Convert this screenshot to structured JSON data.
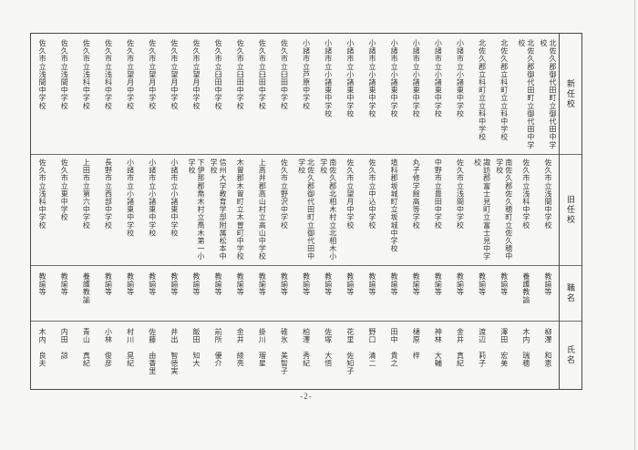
{
  "document": {
    "page_number": "-2-",
    "table": {
      "headers": {
        "new_school": "新任校",
        "old_school": "旧任校",
        "title": "職名",
        "name": "氏名"
      },
      "entries_order": "right-to-left",
      "entries": [
        {
          "new_school": "北佐久郡御代田町立御代田中学校",
          "old_school": "佐久市立浅間中学校",
          "title": "教諭等",
          "name": "柳澤　和恵"
        },
        {
          "new_school": "北佐久郡御代田町立御代田中学校",
          "old_school": "佐久市立浅科中学校",
          "title": "養護教諭",
          "name": "木内　瑞穂"
        },
        {
          "new_school": "北佐久郡立科町立立科中学校",
          "old_school": "南佐久郡佐久穂町立佐久穂中学校",
          "title": "教諭等",
          "name": "澤田　宏美"
        },
        {
          "new_school": "北佐久郡立科町立立科中学校",
          "old_school": "諏訪郡富士見町立富士見中学校",
          "title": "教諭等",
          "name": "渡辺　莉子"
        },
        {
          "new_school": "小諸市立小諸東中学校",
          "old_school": "佐久市立浅間中学校",
          "title": "教諭等",
          "name": "金井　真紀"
        },
        {
          "new_school": "小諸市立小諸東中学校",
          "old_school": "中野市立豊田中学校",
          "title": "教諭等",
          "name": "神林　大輔"
        },
        {
          "new_school": "小諸市立小諸東中学校",
          "old_school": "丸子修学館高等学校",
          "title": "教諭等",
          "name": "樋原　梓"
        },
        {
          "new_school": "小諸市立小諸東中学校",
          "old_school": "埴科郡坂城町立坂城中学校",
          "title": "教諭等",
          "name": "田中　貴之"
        },
        {
          "new_school": "小諸市立小諸東中学校",
          "old_school": "佐久市立中込中学校",
          "title": "教諭等",
          "name": "野口　清二"
        },
        {
          "new_school": "小諸市立小諸東中学校",
          "old_school": "佐久市立望月中学校",
          "title": "教諭等",
          "name": "花里　佐知子"
        },
        {
          "new_school": "小諸市立小諸東中学校",
          "old_school": "南佐久郡北相木村立北相木小学校",
          "title": "教諭等",
          "name": "佐塚　大悟"
        },
        {
          "new_school": "小諸市立芦原中学校",
          "old_school": "北佐久郡御代田町立御代田中学校",
          "title": "教諭等",
          "name": "柏澤　秀紀"
        },
        {
          "new_school": "佐久市立臼田中学校",
          "old_school": "佐久市立野沢中学校",
          "title": "教諭等",
          "name": "碓氷　美智子"
        },
        {
          "new_school": "佐久市立臼田中学校",
          "old_school": "上高井郡高山村立高山中学校",
          "title": "教諭等",
          "name": "掛川　瑠星"
        },
        {
          "new_school": "佐久市立臼田中学校",
          "old_school": "木曽郡木曽町立木曽町中学校",
          "title": "教諭等",
          "name": "金井　綾亮"
        },
        {
          "new_school": "佐久市立臼田中学校",
          "old_school": "信州大学教育学部附属松本中学校",
          "title": "教諭等",
          "name": "前所　優介"
        },
        {
          "new_school": "佐久市立望月中学校",
          "old_school": "下伊那郡喬木村立喬木第一小学校",
          "title": "教諭等",
          "name": "飯田　知大"
        },
        {
          "new_school": "佐久市立望月中学校",
          "old_school": "小諸市立小諸東中学校",
          "title": "教諭等",
          "name": "井出　智徳実"
        },
        {
          "new_school": "佐久市立望月中学校",
          "old_school": "小諸市立小諸東中学校",
          "title": "教諭等",
          "name": "佐藤　由香里"
        },
        {
          "new_school": "佐久市立望月中学校",
          "old_school": "小諸市立小諸東中学校",
          "title": "教諭等",
          "name": "村川　晃紀"
        },
        {
          "new_school": "佐久市立浅科中学校",
          "old_school": "長野市立西部中学校",
          "title": "教諭等",
          "name": "小林　俊彦"
        },
        {
          "new_school": "佐久市立浅科中学校",
          "old_school": "上田市立第六中学校",
          "title": "養護教諭",
          "name": "青山　真紀"
        },
        {
          "new_school": "佐久市立浅間中学校",
          "old_school": "佐久市立東中学校",
          "title": "教諭等",
          "name": "内田　諒"
        },
        {
          "new_school": "佐久市立浅間中学校",
          "old_school": "佐久市立浅科中学校",
          "title": "教諭等",
          "name": "木内　良夫"
        }
      ]
    }
  },
  "colors": {
    "page_background": "#f7f7f5",
    "border": "#4a4a48",
    "text": "#3a3a3a"
  }
}
